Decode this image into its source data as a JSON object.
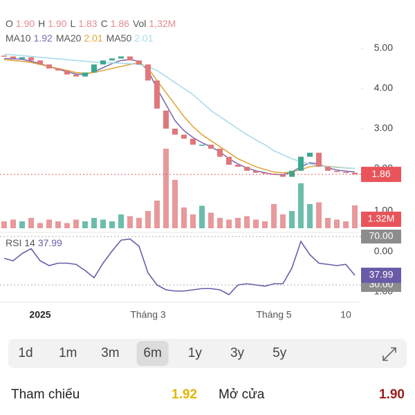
{
  "header": {
    "ohlc": [
      {
        "label": "O",
        "value": "1.90"
      },
      {
        "label": "H",
        "value": "1.90"
      },
      {
        "label": "L",
        "value": "1.83"
      },
      {
        "label": "C",
        "value": "1.86"
      },
      {
        "label": "Vol",
        "value": "1,32M"
      }
    ]
  },
  "chart_data": {
    "type": "candlestick",
    "categories": [
      null,
      null,
      null,
      null,
      "2025",
      null,
      null,
      null,
      null,
      null,
      null,
      null,
      null,
      null,
      null,
      null,
      "Tháng 3",
      null,
      null,
      null,
      null,
      null,
      null,
      null,
      null,
      null,
      null,
      null,
      null,
      null,
      "Tháng 5",
      null,
      null,
      null,
      null,
      null,
      null,
      null,
      "10",
      null
    ],
    "open": [
      4.82,
      4.8,
      4.74,
      4.78,
      4.7,
      4.6,
      4.5,
      4.45,
      4.35,
      4.3,
      4.4,
      4.6,
      4.7,
      4.75,
      4.8,
      4.7,
      4.6,
      4.2,
      3.45,
      3.0,
      2.85,
      2.75,
      2.6,
      2.6,
      2.5,
      2.3,
      2.1,
      2.05,
      1.95,
      1.9,
      1.88,
      1.85,
      1.8,
      1.95,
      2.3,
      2.4,
      2.05,
      1.95,
      1.92,
      1.9
    ],
    "close": [
      4.8,
      4.75,
      4.78,
      4.7,
      4.6,
      4.5,
      4.45,
      4.35,
      4.3,
      4.4,
      4.6,
      4.7,
      4.75,
      4.8,
      4.7,
      4.6,
      4.2,
      3.5,
      3.0,
      2.85,
      2.75,
      2.6,
      2.6,
      2.5,
      2.3,
      2.1,
      2.05,
      1.95,
      1.9,
      1.88,
      1.85,
      1.8,
      1.95,
      2.3,
      2.4,
      2.05,
      1.95,
      1.92,
      1.9,
      1.86
    ],
    "up_color": "#3aa88f",
    "down_color": "#e0777a",
    "ylim": [
      1.5,
      5.2
    ],
    "yticks": [
      {
        "value": 5,
        "label": "5.00"
      },
      {
        "value": 4,
        "label": "4.00"
      },
      {
        "value": 3,
        "label": "3.00"
      },
      {
        "value": 2,
        "label": "2.00"
      }
    ],
    "last_price": {
      "value": 1.86,
      "label": "1.86",
      "color": "#e8545a"
    },
    "ma_series": [
      {
        "name": "MA10",
        "last_label": "1.92",
        "color": "#7b6bb5",
        "values": [
          4.75,
          4.74,
          4.73,
          4.68,
          4.62,
          4.55,
          4.48,
          4.42,
          4.36,
          4.35,
          4.42,
          4.52,
          4.62,
          4.7,
          4.72,
          4.68,
          4.45,
          4.0,
          3.6,
          3.2,
          2.95,
          2.78,
          2.65,
          2.55,
          2.42,
          2.25,
          2.12,
          2.02,
          1.95,
          1.9,
          1.86,
          1.85,
          1.92,
          2.05,
          2.15,
          2.12,
          2.02,
          1.97,
          1.94,
          1.92
        ]
      },
      {
        "name": "MA20",
        "last_label": "2.01",
        "color": "#e0a63a",
        "values": [
          4.72,
          4.7,
          4.68,
          4.65,
          4.6,
          4.55,
          4.5,
          4.45,
          4.4,
          4.38,
          4.4,
          4.45,
          4.5,
          4.55,
          4.6,
          4.65,
          4.5,
          4.2,
          3.9,
          3.6,
          3.3,
          3.05,
          2.85,
          2.7,
          2.55,
          2.4,
          2.25,
          2.15,
          2.05,
          1.98,
          1.92,
          1.9,
          1.92,
          1.98,
          2.05,
          2.08,
          2.06,
          2.04,
          2.02,
          2.01
        ]
      },
      {
        "name": "MA50",
        "last_label": "2.01",
        "color": "#a8dbe9",
        "values": [
          4.85,
          4.84,
          4.82,
          4.8,
          4.78,
          4.76,
          4.74,
          4.72,
          4.7,
          4.68,
          4.66,
          4.65,
          4.64,
          4.63,
          4.62,
          4.6,
          4.55,
          4.45,
          4.3,
          4.15,
          4.0,
          3.85,
          3.65,
          3.45,
          3.3,
          3.15,
          3.0,
          2.85,
          2.72,
          2.6,
          2.45,
          2.35,
          2.25,
          2.18,
          2.12,
          2.08,
          2.05,
          2.03,
          2.02,
          2.01
        ]
      }
    ],
    "volume": {
      "values": [
        0.4,
        0.5,
        0.4,
        0.6,
        0.3,
        0.5,
        0.4,
        0.3,
        0.5,
        0.4,
        0.6,
        0.5,
        0.4,
        0.8,
        0.7,
        0.6,
        1.0,
        1.6,
        4.6,
        2.8,
        1.2,
        0.8,
        1.3,
        0.9,
        0.6,
        0.5,
        0.6,
        0.7,
        0.5,
        0.4,
        1.4,
        0.8,
        1.0,
        2.6,
        1.4,
        1.5,
        0.6,
        0.5,
        0.4,
        1.32
      ],
      "ylim": [
        0,
        5
      ],
      "yticks": [
        {
          "value": 1,
          "label": "1.00"
        }
      ],
      "last_label": "1.32M"
    },
    "rsi": {
      "name": "RSI 14",
      "color": "#6a5ba8",
      "values": [
        52,
        50,
        56,
        60,
        50,
        46,
        48,
        48,
        47,
        42,
        36,
        48,
        58,
        67,
        68,
        62,
        40,
        30,
        26,
        25,
        25,
        26,
        27,
        27,
        26,
        22,
        30,
        31,
        30,
        29,
        31,
        31,
        44,
        66,
        55,
        48,
        47,
        46,
        47,
        37.99
      ],
      "last_label": "37.99",
      "ylim": [
        18,
        72
      ],
      "yticks": [
        {
          "value": 70,
          "label": "70.00"
        },
        {
          "value": 30,
          "label": "30.00"
        }
      ],
      "fragments": [
        "0.00",
        "1.00"
      ]
    }
  },
  "timeframes": {
    "items": [
      "1d",
      "1m",
      "3m",
      "6m",
      "1y",
      "3y",
      "5y"
    ],
    "selected": 3
  },
  "stats": [
    {
      "label": "Tham chiếu",
      "value": "1.92",
      "color": "#e3b500"
    },
    {
      "label": "Mở cửa",
      "value": "1.90",
      "color": "#9b1c1c"
    }
  ]
}
